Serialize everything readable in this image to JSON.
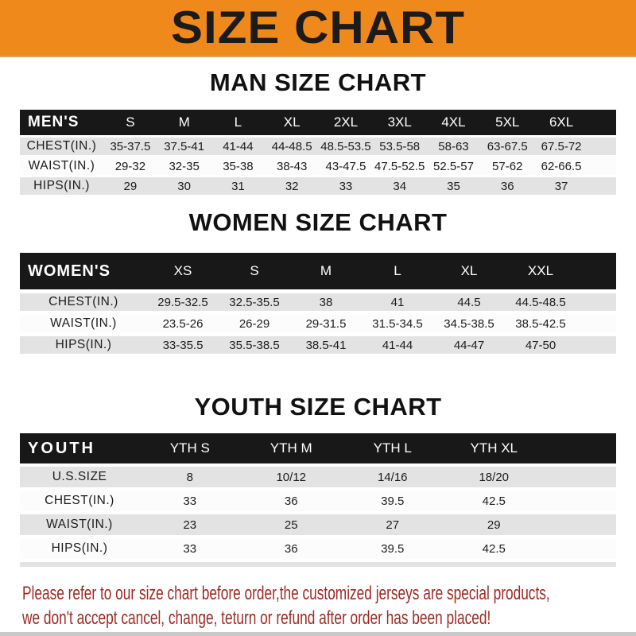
{
  "banner": {
    "title": "SIZE CHART"
  },
  "sections": [
    {
      "title": "MAN SIZE CHART",
      "table": {
        "corner_label": "MEN'S",
        "columns": [
          "S",
          "M",
          "L",
          "XL",
          "2XL",
          "3XL",
          "4XL",
          "5XL",
          "6XL"
        ],
        "rows": [
          {
            "label": "CHEST(IN.)",
            "values": [
              "35-37.5",
              "37.5-41",
              "41-44",
              "44-48.5",
              "48.5-53.5",
              "53.5-58",
              "58-63",
              "63-67.5",
              "67.5-72"
            ]
          },
          {
            "label": "WAIST(IN.)",
            "values": [
              "29-32",
              "32-35",
              "35-38",
              "38-43",
              "43-47.5",
              "47.5-52.5",
              "52.5-57",
              "57-62",
              "62-66.5"
            ]
          },
          {
            "label": "HIPS(IN.)",
            "values": [
              "29",
              "30",
              "31",
              "32",
              "33",
              "34",
              "35",
              "36",
              "37"
            ]
          }
        ]
      }
    },
    {
      "title": "WOMEN SIZE CHART",
      "table": {
        "corner_label": "WOMEN'S",
        "columns": [
          "XS",
          "S",
          "M",
          "L",
          "XL",
          "XXL"
        ],
        "rows": [
          {
            "label": "CHEST(IN.)",
            "values": [
              "29.5-32.5",
              "32.5-35.5",
              "38",
              "41",
              "44.5",
              "44.5-48.5"
            ]
          },
          {
            "label": "WAIST(IN.)",
            "values": [
              "23.5-26",
              "26-29",
              "29-31.5",
              "31.5-34.5",
              "34.5-38.5",
              "38.5-42.5"
            ]
          },
          {
            "label": "HIPS(IN.)",
            "values": [
              "33-35.5",
              "35.5-38.5",
              "38.5-41",
              "41-44",
              "44-47",
              "47-50"
            ]
          }
        ]
      }
    },
    {
      "title": "YOUTH SIZE CHART",
      "table": {
        "corner_label": "YOUTH",
        "columns": [
          "YTH S",
          "YTH M",
          "YTH L",
          "YTH XL"
        ],
        "rows": [
          {
            "label": "U.S.SIZE",
            "values": [
              "8",
              "10/12",
              "14/16",
              "18/20"
            ]
          },
          {
            "label": "CHEST(IN.)",
            "values": [
              "33",
              "36",
              "39.5",
              "42.5"
            ]
          },
          {
            "label": "WAIST(IN.)",
            "values": [
              "23",
              "25",
              "27",
              "29"
            ]
          },
          {
            "label": "HIPS(IN.)",
            "values": [
              "33",
              "36",
              "39.5",
              "42.5"
            ]
          }
        ]
      }
    }
  ],
  "footer": {
    "lines": [
      "Please refer to our size chart before order,the customized jerseys are special products,",
      "we don't accept cancel, change, teturn or refund after order has been placed!"
    ]
  },
  "colors": {
    "banner_orange": "#f0891c",
    "header_band": "#181818",
    "row_shaded": "#e3e3e3",
    "row_plain": "#fcfcfc",
    "footer_red": "#9e2a24"
  }
}
